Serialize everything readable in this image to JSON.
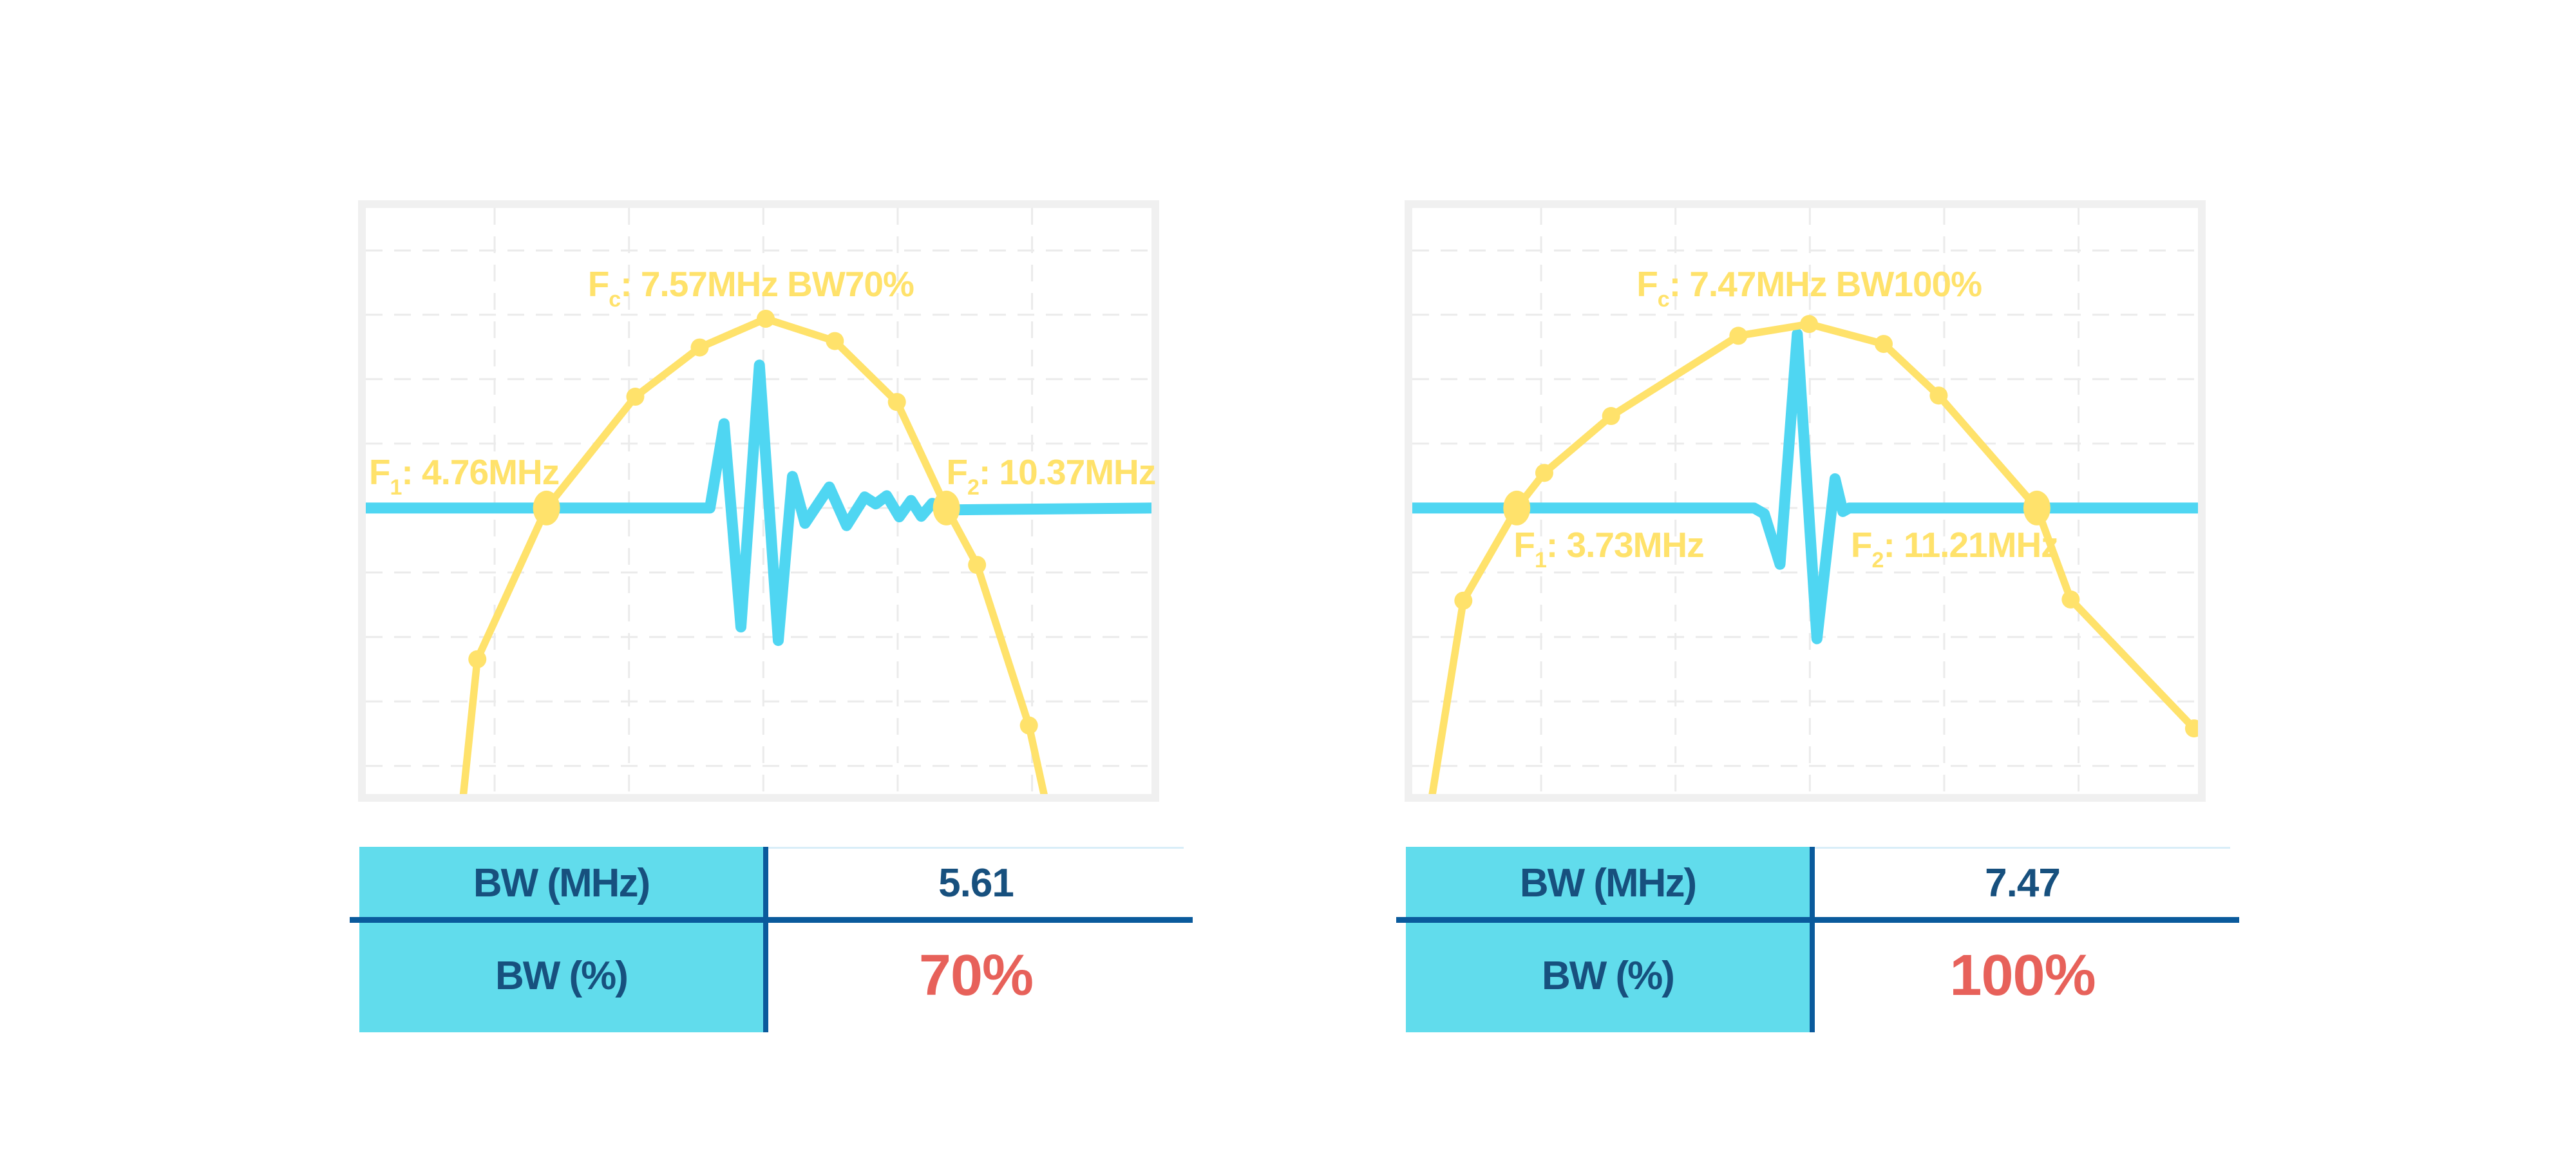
{
  "page": {
    "background": "#FFFFFF"
  },
  "colors": {
    "spectrum_yellow": "#FFE26B",
    "pulse_cyan": "#4FD6F2",
    "grid_gray": "#EBEBEB",
    "panel_frame_gray": "#F0F0F0",
    "table_header_bg": "#61DCEC",
    "navy_text": "#17507E",
    "table_line_blue": "#0A5A9C",
    "value_top_line_light": "#D9EEF8",
    "red_value": "#E7615A"
  },
  "chart_data": [
    {
      "type": "line",
      "title": "Fc: 7.57MHz BW70%",
      "legend": "none",
      "axes_ticks": "none shown",
      "annotations": {
        "fc": {
          "base": "F",
          "sub": "c",
          "rest": ": 7.57MHz BW70%"
        },
        "f1": {
          "base": "F",
          "sub": "1",
          "rest": ": 4.76MHz"
        },
        "f2": {
          "base": "F",
          "sub": "2",
          "rest": ": 10.37MHz"
        }
      },
      "values": {
        "fc_mhz": 7.57,
        "bw_percent": 70,
        "f1_mhz": 4.76,
        "f2_mhz": 10.37,
        "bw_mhz": 5.61
      },
      "label_pos": {
        "fc": [
          0.49,
          0.13
        ],
        "f1": [
          0.125,
          0.45
        ],
        "f2": [
          0.872,
          0.45
        ]
      },
      "grid": {
        "h": [
          0.0725,
          0.182,
          0.292,
          0.402,
          0.512,
          0.622,
          0.732,
          0.842,
          0.952
        ],
        "v": [
          0.164,
          0.335,
          0.506,
          0.677,
          0.848
        ]
      },
      "baseline_y": 0.512,
      "series": [
        {
          "name": "pulse-waveform",
          "points": [
            [
              0.0,
              0.512
            ],
            [
              0.438,
              0.512
            ],
            [
              0.456,
              0.368
            ],
            [
              0.4775,
              0.715
            ],
            [
              0.501,
              0.268
            ],
            [
              0.525,
              0.738
            ],
            [
              0.543,
              0.458
            ],
            [
              0.559,
              0.538
            ],
            [
              0.59,
              0.476
            ],
            [
              0.612,
              0.542
            ],
            [
              0.635,
              0.493
            ],
            [
              0.649,
              0.505
            ],
            [
              0.663,
              0.491
            ],
            [
              0.679,
              0.527
            ],
            [
              0.694,
              0.499
            ],
            [
              0.707,
              0.526
            ],
            [
              0.721,
              0.504
            ],
            [
              0.746,
              0.515
            ],
            [
              1.0,
              0.512
            ]
          ]
        },
        {
          "name": "spectrum-envelope",
          "points": [
            [
              0.122,
              1.03
            ],
            [
              0.142,
              0.77
            ],
            [
              0.23,
              0.512
            ],
            [
              0.343,
              0.322
            ],
            [
              0.425,
              0.238
            ],
            [
              0.509,
              0.189
            ],
            [
              0.597,
              0.227
            ],
            [
              0.676,
              0.331
            ],
            [
              0.739,
              0.512
            ],
            [
              0.778,
              0.609
            ],
            [
              0.844,
              0.883
            ],
            [
              0.868,
              1.03
            ]
          ],
          "markers_small": [
            [
              0.142,
              0.77
            ],
            [
              0.343,
              0.322
            ],
            [
              0.425,
              0.238
            ],
            [
              0.509,
              0.189
            ],
            [
              0.597,
              0.227
            ],
            [
              0.676,
              0.331
            ],
            [
              0.778,
              0.609
            ],
            [
              0.844,
              0.883
            ]
          ],
          "markers_big": [
            [
              0.23,
              0.512
            ],
            [
              0.739,
              0.512
            ]
          ]
        }
      ]
    },
    {
      "type": "line",
      "title": "Fc: 7.47MHz BW100%",
      "legend": "none",
      "axes_ticks": "none shown",
      "annotations": {
        "fc": {
          "base": "F",
          "sub": "c",
          "rest": ": 7.47MHz BW100%"
        },
        "f1": {
          "base": "F",
          "sub": "1",
          "rest": ": 3.73MHz"
        },
        "f2": {
          "base": "F",
          "sub": "2",
          "rest": ": 11.21MHz"
        }
      },
      "values": {
        "fc_mhz": 7.47,
        "bw_percent": 100,
        "f1_mhz": 3.73,
        "f2_mhz": 11.21,
        "bw_mhz": 7.47
      },
      "label_pos": {
        "fc": [
          0.505,
          0.13
        ],
        "f1": [
          0.25,
          0.575
        ],
        "f2": [
          0.69,
          0.575
        ]
      },
      "grid": {
        "h": [
          0.0725,
          0.182,
          0.292,
          0.402,
          0.512,
          0.622,
          0.732,
          0.842,
          0.952
        ],
        "v": [
          0.164,
          0.335,
          0.506,
          0.677,
          0.848
        ]
      },
      "baseline_y": 0.512,
      "series": [
        {
          "name": "pulse-waveform",
          "points": [
            [
              0.0,
              0.512
            ],
            [
              0.435,
              0.512
            ],
            [
              0.448,
              0.522
            ],
            [
              0.468,
              0.608
            ],
            [
              0.49,
              0.215
            ],
            [
              0.515,
              0.735
            ],
            [
              0.538,
              0.462
            ],
            [
              0.548,
              0.518
            ],
            [
              0.556,
              0.512
            ],
            [
              1.0,
              0.512
            ]
          ]
        },
        {
          "name": "spectrum-envelope",
          "points": [
            [
              0.022,
              1.03
            ],
            [
              0.065,
              0.67
            ],
            [
              0.133,
              0.512
            ],
            [
              0.168,
              0.452
            ],
            [
              0.253,
              0.355
            ],
            [
              0.415,
              0.218
            ],
            [
              0.505,
              0.198
            ],
            [
              0.6,
              0.232
            ],
            [
              0.67,
              0.32
            ],
            [
              0.795,
              0.512
            ],
            [
              0.838,
              0.668
            ],
            [
              0.995,
              0.888
            ]
          ],
          "markers_small": [
            [
              0.065,
              0.67
            ],
            [
              0.168,
              0.452
            ],
            [
              0.253,
              0.355
            ],
            [
              0.415,
              0.218
            ],
            [
              0.505,
              0.198
            ],
            [
              0.6,
              0.232
            ],
            [
              0.67,
              0.32
            ],
            [
              0.838,
              0.668
            ],
            [
              0.995,
              0.888
            ]
          ],
          "markers_big": [
            [
              0.133,
              0.512
            ],
            [
              0.795,
              0.512
            ]
          ]
        }
      ]
    }
  ],
  "tables": [
    {
      "rows": [
        {
          "label": "BW (MHz)",
          "value": "5.61"
        },
        {
          "label": "BW (%)",
          "value": "70%"
        }
      ]
    },
    {
      "rows": [
        {
          "label": "BW (MHz)",
          "value": "7.47"
        },
        {
          "label": "BW (%)",
          "value": "100%"
        }
      ]
    }
  ]
}
